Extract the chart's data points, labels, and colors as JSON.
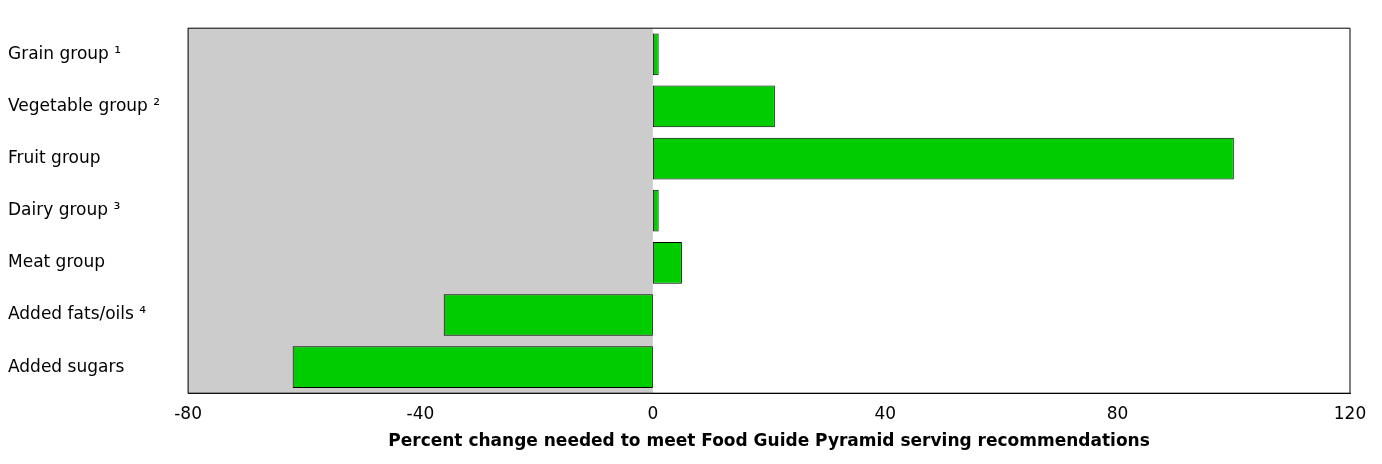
{
  "chart_data": {
    "type": "bar",
    "orientation": "horizontal",
    "xlabel": "Percent change needed to meet Food Guide Pyramid serving recommendations",
    "categories": [
      "Grain group ¹",
      "Vegetable group ²",
      "Fruit group",
      "Dairy group ³",
      "Meat group",
      "Added fats/oils ⁴",
      "Added sugars"
    ],
    "values": [
      1,
      21,
      100,
      1,
      5,
      -36,
      -62
    ],
    "color": "#00cc00",
    "xlim": [
      -80,
      120
    ],
    "xticks": [
      -80,
      -40,
      0,
      40,
      80,
      120
    ],
    "grid": false,
    "legend": false,
    "bands": [
      {
        "axis": "x",
        "from": -80,
        "to": 0,
        "color": "#cccccc"
      }
    ]
  }
}
